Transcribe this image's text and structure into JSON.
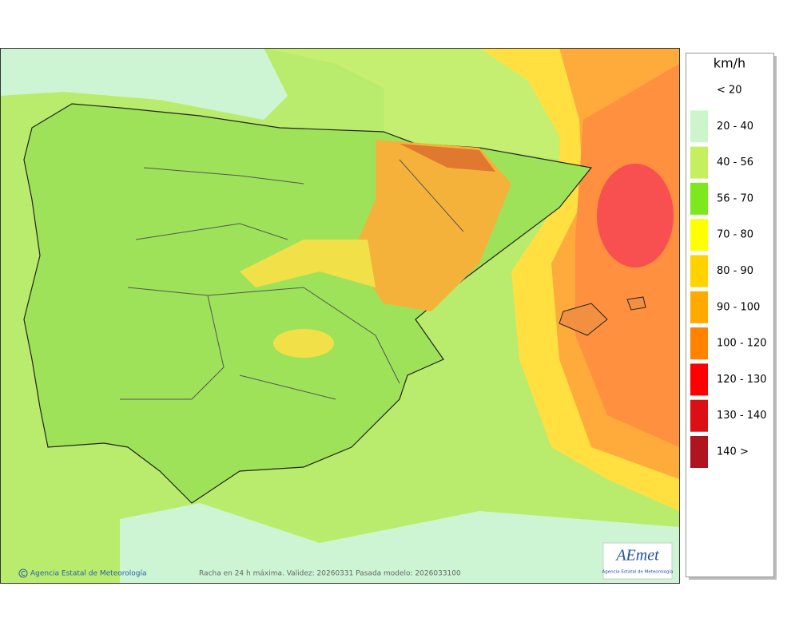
{
  "map": {
    "caption": "Racha en 24 h máxima. Validez: 20260331 Pasada modelo: 2026033100",
    "credit": "Agencia Estatal de Meteorología"
  },
  "logo": {
    "title": "AEmet",
    "subtitle": "Agencia Estatal de Meteorología"
  },
  "legend": {
    "title": "km/h",
    "items": [
      {
        "label": "< 20",
        "color": "#ffffff"
      },
      {
        "label": "20 - 40",
        "color": "#ccf5cc"
      },
      {
        "label": "40 - 56",
        "color": "#c4f060"
      },
      {
        "label": "56 - 70",
        "color": "#7ee81e"
      },
      {
        "label": "70 - 80",
        "color": "#ffff00"
      },
      {
        "label": "80 - 90",
        "color": "#ffd200"
      },
      {
        "label": "90 - 100",
        "color": "#ffaa00"
      },
      {
        "label": "100 - 120",
        "color": "#ff8200"
      },
      {
        "label": "120 - 130",
        "color": "#ff0000"
      },
      {
        "label": "130 - 140",
        "color": "#dc0f14"
      },
      {
        "label": "140 >",
        "color": "#b0141e"
      }
    ]
  }
}
